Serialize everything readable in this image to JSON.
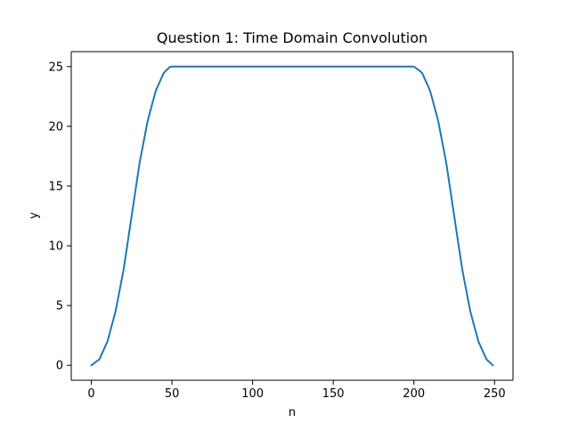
{
  "chart_data": {
    "type": "line",
    "title": "Question 1: Time Domain Convolution",
    "xlabel": "n",
    "ylabel": "y",
    "xlim": [
      -12.45,
      261.45
    ],
    "ylim": [
      -1.25,
      26.25
    ],
    "xticks": [
      0,
      50,
      100,
      150,
      200,
      250
    ],
    "yticks": [
      0,
      5,
      10,
      15,
      20,
      25
    ],
    "grid": false,
    "legend": "none",
    "series": [
      {
        "color": "#1f77b4",
        "x": [
          0,
          5,
          10,
          15,
          20,
          25,
          30,
          35,
          40,
          45,
          49,
          50,
          100,
          150,
          199,
          200,
          205,
          210,
          215,
          220,
          225,
          230,
          235,
          240,
          245,
          249
        ],
        "y": [
          0,
          0.5,
          2,
          4.5,
          8,
          12.5,
          17,
          20.5,
          23,
          24.5,
          25,
          25,
          25,
          25,
          25,
          25,
          24.5,
          23,
          20.5,
          17,
          12.5,
          8,
          4.5,
          2,
          0.5,
          0
        ]
      }
    ]
  }
}
